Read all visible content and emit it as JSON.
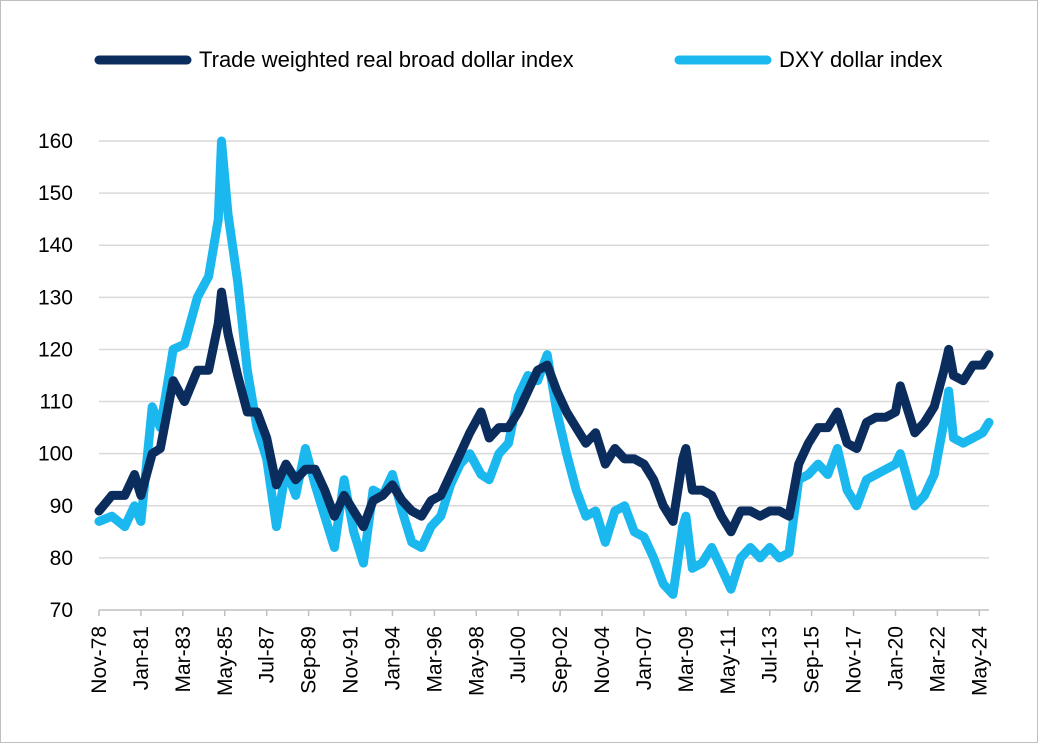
{
  "chart_data": {
    "type": "line",
    "title": "",
    "xlabel": "",
    "ylabel": "",
    "ylim": [
      70,
      160
    ],
    "yticks": [
      70,
      80,
      90,
      100,
      110,
      120,
      130,
      140,
      150,
      160
    ],
    "grid": "horizontal",
    "legend": "top",
    "x_tick_labels": [
      "Nov-78",
      "Jan-81",
      "Mar-83",
      "May-85",
      "Jul-87",
      "Sep-89",
      "Nov-91",
      "Jan-94",
      "Mar-96",
      "May-98",
      "Jul-00",
      "Sep-02",
      "Nov-04",
      "Jan-07",
      "Mar-09",
      "May-11",
      "Jul-13",
      "Sep-15",
      "Nov-17",
      "Jan-20",
      "Mar-22",
      "May-24"
    ],
    "x_start": "Nov-78",
    "x_end": "Nov-24",
    "series": [
      {
        "name": "Trade weighted real broad dollar index",
        "color": "#0b2d5e",
        "points": [
          [
            "Nov-78",
            89
          ],
          [
            "Jul-79",
            92
          ],
          [
            "Mar-80",
            92
          ],
          [
            "Sep-80",
            96
          ],
          [
            "Jan-81",
            92
          ],
          [
            "Aug-81",
            100
          ],
          [
            "Jan-82",
            101
          ],
          [
            "Sep-82",
            114
          ],
          [
            "Apr-83",
            110
          ],
          [
            "Dec-83",
            116
          ],
          [
            "Jul-84",
            116
          ],
          [
            "Jan-85",
            125
          ],
          [
            "Mar-85",
            131
          ],
          [
            "Jul-85",
            123
          ],
          [
            "Jan-86",
            115
          ],
          [
            "Jul-86",
            108
          ],
          [
            "Jan-87",
            108
          ],
          [
            "Jul-87",
            103
          ],
          [
            "Jan-88",
            94
          ],
          [
            "Jul-88",
            98
          ],
          [
            "Jan-89",
            95
          ],
          [
            "Jul-89",
            97
          ],
          [
            "Jan-90",
            97
          ],
          [
            "Jul-90",
            93
          ],
          [
            "Jan-91",
            88
          ],
          [
            "Jul-91",
            92
          ],
          [
            "Jan-92",
            89
          ],
          [
            "Jul-92",
            86
          ],
          [
            "Jan-93",
            91
          ],
          [
            "Jul-93",
            92
          ],
          [
            "Jan-94",
            94
          ],
          [
            "Jul-94",
            91
          ],
          [
            "Jan-95",
            89
          ],
          [
            "Jul-95",
            88
          ],
          [
            "Jan-96",
            91
          ],
          [
            "Jul-96",
            92
          ],
          [
            "Jan-97",
            96
          ],
          [
            "Jul-97",
            100
          ],
          [
            "Jan-98",
            104
          ],
          [
            "Aug-98",
            108
          ],
          [
            "Jan-99",
            103
          ],
          [
            "Jul-99",
            105
          ],
          [
            "Jan-00",
            105
          ],
          [
            "Jul-00",
            108
          ],
          [
            "Jan-01",
            112
          ],
          [
            "Jul-01",
            116
          ],
          [
            "Jan-02",
            117
          ],
          [
            "Jul-02",
            112
          ],
          [
            "Jan-03",
            108
          ],
          [
            "Jul-03",
            105
          ],
          [
            "Jan-04",
            102
          ],
          [
            "Jul-04",
            104
          ],
          [
            "Jan-05",
            98
          ],
          [
            "Jul-05",
            101
          ],
          [
            "Jan-06",
            99
          ],
          [
            "Jul-06",
            99
          ],
          [
            "Jan-07",
            98
          ],
          [
            "Jul-07",
            95
          ],
          [
            "Jan-08",
            90
          ],
          [
            "Jul-08",
            87
          ],
          [
            "Jan-09",
            99
          ],
          [
            "Mar-09",
            101
          ],
          [
            "Jul-09",
            93
          ],
          [
            "Jan-10",
            93
          ],
          [
            "Jul-10",
            92
          ],
          [
            "Jan-11",
            88
          ],
          [
            "Jul-11",
            85
          ],
          [
            "Jan-12",
            89
          ],
          [
            "Jul-12",
            89
          ],
          [
            "Jan-13",
            88
          ],
          [
            "Jul-13",
            89
          ],
          [
            "Jan-14",
            89
          ],
          [
            "Jul-14",
            88
          ],
          [
            "Jan-15",
            98
          ],
          [
            "Jul-15",
            102
          ],
          [
            "Jan-16",
            105
          ],
          [
            "Jul-16",
            105
          ],
          [
            "Jan-17",
            108
          ],
          [
            "Jul-17",
            102
          ],
          [
            "Jan-18",
            101
          ],
          [
            "Jul-18",
            106
          ],
          [
            "Jan-19",
            107
          ],
          [
            "Jul-19",
            107
          ],
          [
            "Jan-20",
            108
          ],
          [
            "Apr-20",
            113
          ],
          [
            "Jan-21",
            104
          ],
          [
            "Jul-21",
            106
          ],
          [
            "Jan-22",
            109
          ],
          [
            "Jul-22",
            116
          ],
          [
            "Oct-22",
            120
          ],
          [
            "Jan-23",
            115
          ],
          [
            "Jul-23",
            114
          ],
          [
            "Jan-24",
            117
          ],
          [
            "Jul-24",
            117
          ],
          [
            "Nov-24",
            119
          ]
        ]
      },
      {
        "name": "DXY dollar index",
        "color": "#1ab8ee",
        "points": [
          [
            "Nov-78",
            87
          ],
          [
            "Jul-79",
            88
          ],
          [
            "Mar-80",
            86
          ],
          [
            "Sep-80",
            90
          ],
          [
            "Jan-81",
            87
          ],
          [
            "Aug-81",
            109
          ],
          [
            "Jan-82",
            105
          ],
          [
            "Sep-82",
            120
          ],
          [
            "Apr-83",
            121
          ],
          [
            "Dec-83",
            130
          ],
          [
            "Jul-84",
            134
          ],
          [
            "Jan-85",
            145
          ],
          [
            "Mar-85",
            160
          ],
          [
            "Jul-85",
            146
          ],
          [
            "Jan-86",
            133
          ],
          [
            "Jul-86",
            116
          ],
          [
            "Jan-87",
            105
          ],
          [
            "Jul-87",
            99
          ],
          [
            "Jan-88",
            86
          ],
          [
            "Jul-88",
            97
          ],
          [
            "Jan-89",
            92
          ],
          [
            "Jul-89",
            101
          ],
          [
            "Jan-90",
            94
          ],
          [
            "Jul-90",
            88
          ],
          [
            "Jan-91",
            82
          ],
          [
            "Jul-91",
            95
          ],
          [
            "Jan-92",
            85
          ],
          [
            "Jul-92",
            79
          ],
          [
            "Jan-93",
            93
          ],
          [
            "Jul-93",
            92
          ],
          [
            "Jan-94",
            96
          ],
          [
            "Jul-94",
            89
          ],
          [
            "Jan-95",
            83
          ],
          [
            "Jul-95",
            82
          ],
          [
            "Jan-96",
            86
          ],
          [
            "Jul-96",
            88
          ],
          [
            "Jan-97",
            94
          ],
          [
            "Jul-97",
            98
          ],
          [
            "Jan-98",
            100
          ],
          [
            "Aug-98",
            96
          ],
          [
            "Jan-99",
            95
          ],
          [
            "Jul-99",
            100
          ],
          [
            "Jan-00",
            102
          ],
          [
            "Jul-00",
            111
          ],
          [
            "Jan-01",
            115
          ],
          [
            "Jul-01",
            114
          ],
          [
            "Jan-02",
            119
          ],
          [
            "Jul-02",
            108
          ],
          [
            "Jan-03",
            100
          ],
          [
            "Jul-03",
            93
          ],
          [
            "Jan-04",
            88
          ],
          [
            "Jul-04",
            89
          ],
          [
            "Jan-05",
            83
          ],
          [
            "Jul-05",
            89
          ],
          [
            "Jan-06",
            90
          ],
          [
            "Jul-06",
            85
          ],
          [
            "Jan-07",
            84
          ],
          [
            "Jul-07",
            80
          ],
          [
            "Jan-08",
            75
          ],
          [
            "Jul-08",
            73
          ],
          [
            "Jan-09",
            86
          ],
          [
            "Mar-09",
            88
          ],
          [
            "Jul-09",
            78
          ],
          [
            "Jan-10",
            79
          ],
          [
            "Jul-10",
            82
          ],
          [
            "Jan-11",
            78
          ],
          [
            "Jul-11",
            74
          ],
          [
            "Jan-12",
            80
          ],
          [
            "Jul-12",
            82
          ],
          [
            "Jan-13",
            80
          ],
          [
            "Jul-13",
            82
          ],
          [
            "Jan-14",
            80
          ],
          [
            "Jul-14",
            81
          ],
          [
            "Jan-15",
            95
          ],
          [
            "Jul-15",
            96
          ],
          [
            "Jan-16",
            98
          ],
          [
            "Jul-16",
            96
          ],
          [
            "Jan-17",
            101
          ],
          [
            "Jul-17",
            93
          ],
          [
            "Jan-18",
            90
          ],
          [
            "Jul-18",
            95
          ],
          [
            "Jan-19",
            96
          ],
          [
            "Jul-19",
            97
          ],
          [
            "Jan-20",
            98
          ],
          [
            "Apr-20",
            100
          ],
          [
            "Jan-21",
            90
          ],
          [
            "Jul-21",
            92
          ],
          [
            "Jan-22",
            96
          ],
          [
            "Jul-22",
            106
          ],
          [
            "Oct-22",
            112
          ],
          [
            "Jan-23",
            103
          ],
          [
            "Jul-23",
            102
          ],
          [
            "Jan-24",
            103
          ],
          [
            "Jul-24",
            104
          ],
          [
            "Nov-24",
            106
          ]
        ]
      }
    ]
  }
}
